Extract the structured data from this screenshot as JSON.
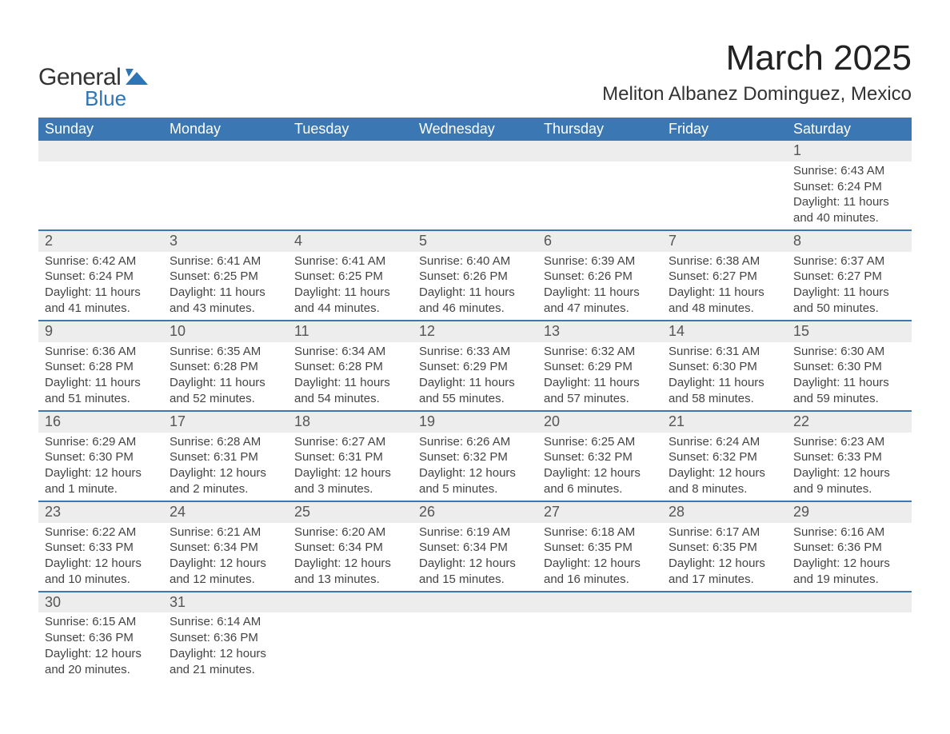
{
  "logo": {
    "text1": "General",
    "text2": "Blue",
    "markColor": "#2e75b6"
  },
  "title": "March 2025",
  "location": "Meliton Albanez Dominguez, Mexico",
  "colors": {
    "headerBg": "#3a77b3",
    "headerText": "#ffffff",
    "dayNumBg": "#ededed",
    "dayNumText": "#555555",
    "bodyText": "#444444",
    "rowDivider": "#3a77b3"
  },
  "weekdays": [
    "Sunday",
    "Monday",
    "Tuesday",
    "Wednesday",
    "Thursday",
    "Friday",
    "Saturday"
  ],
  "weeks": [
    {
      "nums": [
        "",
        "",
        "",
        "",
        "",
        "",
        "1"
      ],
      "cells": [
        null,
        null,
        null,
        null,
        null,
        null,
        {
          "sunrise": "Sunrise: 6:43 AM",
          "sunset": "Sunset: 6:24 PM",
          "day1": "Daylight: 11 hours",
          "day2": "and 40 minutes."
        }
      ]
    },
    {
      "nums": [
        "2",
        "3",
        "4",
        "5",
        "6",
        "7",
        "8"
      ],
      "cells": [
        {
          "sunrise": "Sunrise: 6:42 AM",
          "sunset": "Sunset: 6:24 PM",
          "day1": "Daylight: 11 hours",
          "day2": "and 41 minutes."
        },
        {
          "sunrise": "Sunrise: 6:41 AM",
          "sunset": "Sunset: 6:25 PM",
          "day1": "Daylight: 11 hours",
          "day2": "and 43 minutes."
        },
        {
          "sunrise": "Sunrise: 6:41 AM",
          "sunset": "Sunset: 6:25 PM",
          "day1": "Daylight: 11 hours",
          "day2": "and 44 minutes."
        },
        {
          "sunrise": "Sunrise: 6:40 AM",
          "sunset": "Sunset: 6:26 PM",
          "day1": "Daylight: 11 hours",
          "day2": "and 46 minutes."
        },
        {
          "sunrise": "Sunrise: 6:39 AM",
          "sunset": "Sunset: 6:26 PM",
          "day1": "Daylight: 11 hours",
          "day2": "and 47 minutes."
        },
        {
          "sunrise": "Sunrise: 6:38 AM",
          "sunset": "Sunset: 6:27 PM",
          "day1": "Daylight: 11 hours",
          "day2": "and 48 minutes."
        },
        {
          "sunrise": "Sunrise: 6:37 AM",
          "sunset": "Sunset: 6:27 PM",
          "day1": "Daylight: 11 hours",
          "day2": "and 50 minutes."
        }
      ]
    },
    {
      "nums": [
        "9",
        "10",
        "11",
        "12",
        "13",
        "14",
        "15"
      ],
      "cells": [
        {
          "sunrise": "Sunrise: 6:36 AM",
          "sunset": "Sunset: 6:28 PM",
          "day1": "Daylight: 11 hours",
          "day2": "and 51 minutes."
        },
        {
          "sunrise": "Sunrise: 6:35 AM",
          "sunset": "Sunset: 6:28 PM",
          "day1": "Daylight: 11 hours",
          "day2": "and 52 minutes."
        },
        {
          "sunrise": "Sunrise: 6:34 AM",
          "sunset": "Sunset: 6:28 PM",
          "day1": "Daylight: 11 hours",
          "day2": "and 54 minutes."
        },
        {
          "sunrise": "Sunrise: 6:33 AM",
          "sunset": "Sunset: 6:29 PM",
          "day1": "Daylight: 11 hours",
          "day2": "and 55 minutes."
        },
        {
          "sunrise": "Sunrise: 6:32 AM",
          "sunset": "Sunset: 6:29 PM",
          "day1": "Daylight: 11 hours",
          "day2": "and 57 minutes."
        },
        {
          "sunrise": "Sunrise: 6:31 AM",
          "sunset": "Sunset: 6:30 PM",
          "day1": "Daylight: 11 hours",
          "day2": "and 58 minutes."
        },
        {
          "sunrise": "Sunrise: 6:30 AM",
          "sunset": "Sunset: 6:30 PM",
          "day1": "Daylight: 11 hours",
          "day2": "and 59 minutes."
        }
      ]
    },
    {
      "nums": [
        "16",
        "17",
        "18",
        "19",
        "20",
        "21",
        "22"
      ],
      "cells": [
        {
          "sunrise": "Sunrise: 6:29 AM",
          "sunset": "Sunset: 6:30 PM",
          "day1": "Daylight: 12 hours",
          "day2": "and 1 minute."
        },
        {
          "sunrise": "Sunrise: 6:28 AM",
          "sunset": "Sunset: 6:31 PM",
          "day1": "Daylight: 12 hours",
          "day2": "and 2 minutes."
        },
        {
          "sunrise": "Sunrise: 6:27 AM",
          "sunset": "Sunset: 6:31 PM",
          "day1": "Daylight: 12 hours",
          "day2": "and 3 minutes."
        },
        {
          "sunrise": "Sunrise: 6:26 AM",
          "sunset": "Sunset: 6:32 PM",
          "day1": "Daylight: 12 hours",
          "day2": "and 5 minutes."
        },
        {
          "sunrise": "Sunrise: 6:25 AM",
          "sunset": "Sunset: 6:32 PM",
          "day1": "Daylight: 12 hours",
          "day2": "and 6 minutes."
        },
        {
          "sunrise": "Sunrise: 6:24 AM",
          "sunset": "Sunset: 6:32 PM",
          "day1": "Daylight: 12 hours",
          "day2": "and 8 minutes."
        },
        {
          "sunrise": "Sunrise: 6:23 AM",
          "sunset": "Sunset: 6:33 PM",
          "day1": "Daylight: 12 hours",
          "day2": "and 9 minutes."
        }
      ]
    },
    {
      "nums": [
        "23",
        "24",
        "25",
        "26",
        "27",
        "28",
        "29"
      ],
      "cells": [
        {
          "sunrise": "Sunrise: 6:22 AM",
          "sunset": "Sunset: 6:33 PM",
          "day1": "Daylight: 12 hours",
          "day2": "and 10 minutes."
        },
        {
          "sunrise": "Sunrise: 6:21 AM",
          "sunset": "Sunset: 6:34 PM",
          "day1": "Daylight: 12 hours",
          "day2": "and 12 minutes."
        },
        {
          "sunrise": "Sunrise: 6:20 AM",
          "sunset": "Sunset: 6:34 PM",
          "day1": "Daylight: 12 hours",
          "day2": "and 13 minutes."
        },
        {
          "sunrise": "Sunrise: 6:19 AM",
          "sunset": "Sunset: 6:34 PM",
          "day1": "Daylight: 12 hours",
          "day2": "and 15 minutes."
        },
        {
          "sunrise": "Sunrise: 6:18 AM",
          "sunset": "Sunset: 6:35 PM",
          "day1": "Daylight: 12 hours",
          "day2": "and 16 minutes."
        },
        {
          "sunrise": "Sunrise: 6:17 AM",
          "sunset": "Sunset: 6:35 PM",
          "day1": "Daylight: 12 hours",
          "day2": "and 17 minutes."
        },
        {
          "sunrise": "Sunrise: 6:16 AM",
          "sunset": "Sunset: 6:36 PM",
          "day1": "Daylight: 12 hours",
          "day2": "and 19 minutes."
        }
      ]
    },
    {
      "nums": [
        "30",
        "31",
        "",
        "",
        "",
        "",
        ""
      ],
      "cells": [
        {
          "sunrise": "Sunrise: 6:15 AM",
          "sunset": "Sunset: 6:36 PM",
          "day1": "Daylight: 12 hours",
          "day2": "and 20 minutes."
        },
        {
          "sunrise": "Sunrise: 6:14 AM",
          "sunset": "Sunset: 6:36 PM",
          "day1": "Daylight: 12 hours",
          "day2": "and 21 minutes."
        },
        null,
        null,
        null,
        null,
        null
      ]
    }
  ]
}
